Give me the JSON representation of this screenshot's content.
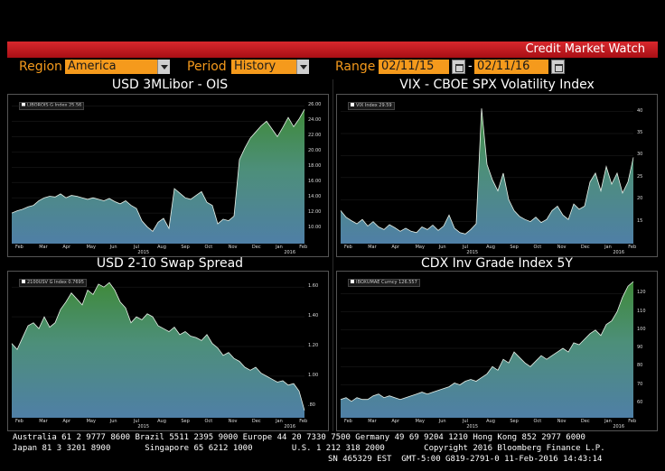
{
  "window": {
    "title": "Credit Market Watch",
    "accent": "#f59a1c",
    "titlebar_color": "#c41c22"
  },
  "controls": {
    "region_label": "Region",
    "region_value": "America",
    "period_label": "Period",
    "period_value": "History",
    "range_label": "Range",
    "start_date": "02/11/15",
    "end_date": "02/11/16",
    "range_separator": "-"
  },
  "chart_data": [
    {
      "type": "area",
      "title": "USD 3MLibor - OIS",
      "legend": "LIBOROIS G Index 25.56",
      "x_labels": [
        "Feb",
        "Mar",
        "Apr",
        "May",
        "Jun",
        "Jul",
        "Aug",
        "Sep",
        "Oct",
        "Nov",
        "Dec",
        "Jan",
        "Feb"
      ],
      "year_labels": [
        "2015",
        "2016"
      ],
      "y_ticks": [
        "10.00",
        "12.00",
        "14.00",
        "16.00",
        "18.00",
        "20.00",
        "22.00",
        "24.00",
        "26.00"
      ],
      "ylim": [
        8,
        27
      ],
      "values": [
        12.0,
        12.3,
        12.5,
        12.8,
        13.0,
        13.6,
        14.0,
        14.2,
        14.1,
        14.5,
        14.0,
        14.3,
        14.2,
        14.0,
        13.8,
        14.0,
        13.8,
        13.6,
        13.9,
        13.5,
        13.2,
        13.6,
        13.0,
        12.6,
        11.0,
        10.2,
        9.6,
        10.8,
        11.3,
        10.0,
        15.2,
        14.6,
        14.0,
        13.8,
        14.3,
        14.8,
        13.4,
        13.0,
        10.6,
        11.2,
        11.0,
        11.6,
        19.0,
        20.5,
        21.8,
        22.6,
        23.4,
        24.0,
        23.0,
        22.0,
        23.2,
        24.5,
        23.3,
        24.3,
        25.56
      ]
    },
    {
      "type": "area",
      "title": "VIX - CBOE SPX Volatility Index",
      "legend": "VIX Index 29.59",
      "x_labels": [
        "Feb",
        "Mar",
        "Apr",
        "May",
        "Jun",
        "Jul",
        "Aug",
        "Sep",
        "Oct",
        "Nov",
        "Dec",
        "Jan",
        "Feb"
      ],
      "year_labels": [
        "2015",
        "2016"
      ],
      "y_ticks": [
        "15",
        "20",
        "25",
        "30",
        "35",
        "40"
      ],
      "ylim": [
        10,
        43
      ],
      "values": [
        17.5,
        16.0,
        15.2,
        14.5,
        15.5,
        14.0,
        15.0,
        13.8,
        13.2,
        14.3,
        13.6,
        12.8,
        13.5,
        12.8,
        12.5,
        13.8,
        13.2,
        14.2,
        13.0,
        14.0,
        16.5,
        13.5,
        12.5,
        12.2,
        13.2,
        14.5,
        40.7,
        28.0,
        24.5,
        22.0,
        26.0,
        20.0,
        17.5,
        16.2,
        15.5,
        15.0,
        16.0,
        14.8,
        15.5,
        17.5,
        18.5,
        16.5,
        15.5,
        19.0,
        17.8,
        18.5,
        24.0,
        26.0,
        22.0,
        27.5,
        23.5,
        26.0,
        21.5,
        24.0,
        29.59
      ]
    },
    {
      "type": "area",
      "title": "USD 2-10 Swap Spread",
      "legend": "2100USV G Index 0.7695",
      "x_labels": [
        "Feb",
        "Mar",
        "Apr",
        "May",
        "Jun",
        "Jul",
        "Aug",
        "Sep",
        "Oct",
        "Nov",
        "Dec",
        "Jan",
        "Feb"
      ],
      "year_labels": [
        "2015",
        "2016"
      ],
      "y_ticks": [
        ".80",
        "1.00",
        "1.20",
        "1.40",
        "1.60"
      ],
      "ylim": [
        0.72,
        1.68
      ],
      "values": [
        1.22,
        1.18,
        1.26,
        1.34,
        1.36,
        1.32,
        1.4,
        1.33,
        1.36,
        1.45,
        1.5,
        1.56,
        1.52,
        1.48,
        1.58,
        1.55,
        1.62,
        1.6,
        1.63,
        1.58,
        1.5,
        1.46,
        1.36,
        1.4,
        1.38,
        1.42,
        1.4,
        1.34,
        1.32,
        1.3,
        1.33,
        1.28,
        1.3,
        1.27,
        1.26,
        1.24,
        1.28,
        1.22,
        1.19,
        1.14,
        1.16,
        1.12,
        1.1,
        1.06,
        1.04,
        1.06,
        1.02,
        1.0,
        0.98,
        0.96,
        0.97,
        0.94,
        0.95,
        0.9,
        0.7695
      ]
    },
    {
      "type": "area",
      "title": "CDX Inv Grade Index 5Y",
      "legend": "IBOXUMAE Curncy 126.557",
      "x_labels": [
        "Feb",
        "Mar",
        "Apr",
        "May",
        "Jun",
        "Jul",
        "Aug",
        "Sep",
        "Oct",
        "Nov",
        "Dec",
        "Jan",
        "Feb"
      ],
      "year_labels": [
        "2015",
        "2016"
      ],
      "y_ticks": [
        "60",
        "70",
        "80",
        "90",
        "100",
        "110",
        "120"
      ],
      "ylim": [
        52,
        130
      ],
      "values": [
        62,
        63,
        61,
        63,
        62,
        62,
        64,
        65,
        63,
        64,
        63,
        62,
        63,
        64,
        65,
        66,
        65,
        66,
        67,
        68,
        69,
        71,
        70,
        72,
        73,
        72,
        74,
        76,
        80,
        78,
        84,
        82,
        88,
        85,
        82,
        80,
        83,
        86,
        84,
        86,
        88,
        90,
        88,
        93,
        92,
        95,
        98,
        100,
        97,
        103,
        105,
        110,
        118,
        124,
        126.557
      ]
    }
  ],
  "footer": {
    "line1": "Australia 61 2 9777 8600 Brazil 5511 2395 9000 Europe 44 20 7330 7500 Germany 49 69 9204 1210 Hong Kong 852 2977 6000",
    "line2": "Japan 81 3 3201 8900       Singapore 65 6212 1000        U.S. 1 212 318 2000        Copyright 2016 Bloomberg Finance L.P.",
    "line3": "SN 465329 EST  GMT-5:00 G819-2791-0 11-Feb-2016 14:43:14"
  }
}
